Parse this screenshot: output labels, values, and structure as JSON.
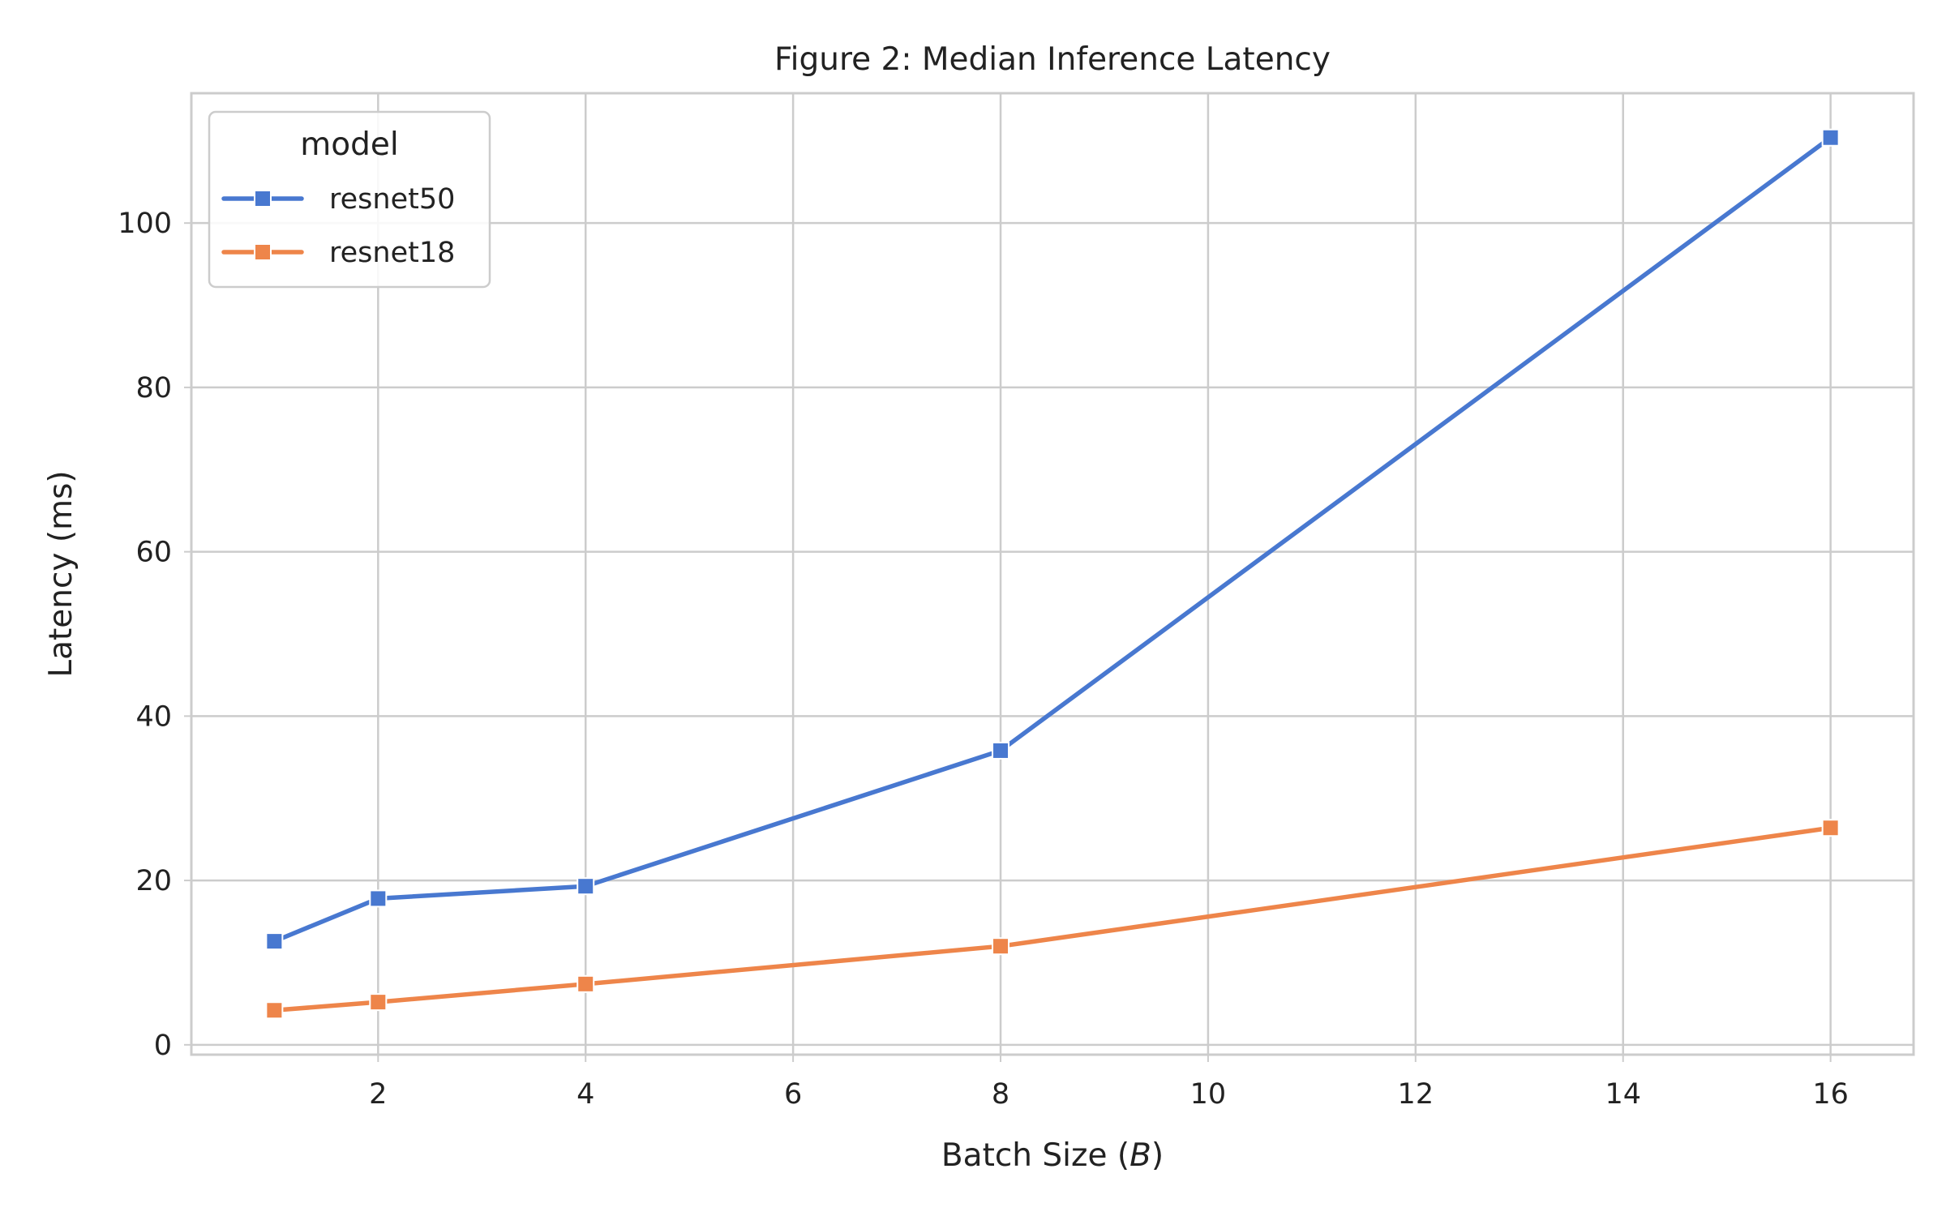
{
  "chart_data": {
    "type": "line",
    "title": "Figure 2: Median Inference Latency",
    "xlabel": "Batch Size (B)",
    "xlabel_prefix": "Batch Size (",
    "xlabel_var": "B",
    "xlabel_suffix": ")",
    "ylabel": "Latency (ms)",
    "xlim": [
      0.2,
      16.8
    ],
    "ylim": [
      -1.2,
      115.8
    ],
    "xticks": [
      2,
      4,
      6,
      8,
      10,
      12,
      14,
      16
    ],
    "yticks": [
      0,
      20,
      40,
      60,
      80,
      100
    ],
    "grid": true,
    "legend": {
      "title": "model",
      "placement": "top-left"
    },
    "series": [
      {
        "name": "resnet50",
        "color": "#4878d0",
        "marker": "square",
        "x": [
          1,
          2,
          4,
          8,
          16
        ],
        "y": [
          12.6,
          17.8,
          19.3,
          35.8,
          110.4
        ]
      },
      {
        "name": "resnet18",
        "color": "#ee854a",
        "marker": "square",
        "x": [
          1,
          2,
          4,
          8,
          16
        ],
        "y": [
          4.2,
          5.2,
          7.4,
          12.0,
          26.4
        ]
      }
    ]
  }
}
